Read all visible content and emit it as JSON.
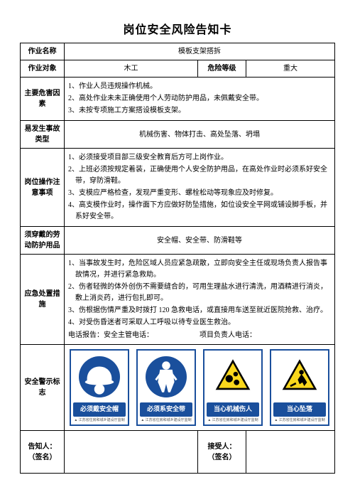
{
  "title": "岗位安全风险告知卡",
  "rows": {
    "job_name": {
      "label": "作业名称",
      "value": "模板支架搭拆"
    },
    "job_target": {
      "label": "作业对象",
      "value": "木工",
      "risk_level_label": "危险等级",
      "risk_level_value": "重大"
    },
    "hazards": {
      "label": "主要危害因素",
      "items": [
        "1、作业人员违规操作机械。",
        "2、高处作业未未正确使用个人劳动防护用品，未佩戴安全带。",
        "3、未按专项施工方案搭设模板支架。"
      ]
    },
    "accident_type": {
      "label": "易发生事故类型",
      "value": "机械伤害、物体打击、高处坠落、坍塌"
    },
    "precautions": {
      "label": "岗位操作注意事项",
      "items": [
        "1、必须接受项目部三级安全教育后方可上岗作业。",
        "2、上班必须按规定着装，正确使用个人安全防护用品，在高处作业时必须系好安全带，穿防滑鞋。",
        "3、支模应严格检查，发现严重变形、螺栓松动等现象应及时修复。",
        "4、高支模作业时，操作面下方应做好防坠措施，如位设安全平网或铺设脚手板，并系好安全带。"
      ]
    },
    "ppe": {
      "label": "须穿戴的劳动防护用品",
      "value": "安全帽、安全带、防滑鞋等"
    },
    "emergency": {
      "label": "应急处置措施",
      "items": [
        "1、当事故发生时，危险区域人员应紧急疏散，立即向安全主任或现场负责人报告事故情况，并进行紧急救助。",
        "2、伤者轻微的体外创伤不需要缝合的，可用生理盐水进行清洗，用酒精进行消炎，敷上消炎药，进行包扎即可。",
        "3、伤根据伤情严重及时拨打 120 急救电话，或直接用车送至就近医院抢救、治疗。",
        "4、对受伤昏迷者可采取人工呼吸以待专业医生救治。"
      ],
      "contact_left": "电话报告：安全主管电话：",
      "contact_right": "项目负责人电话："
    },
    "signs": {
      "label": "安全警示标志",
      "items": [
        {
          "type": "mandatory",
          "text": "必须戴安全帽",
          "icon": "helmet",
          "footer": "▲ 江苏省住房和城乡建设厅监制"
        },
        {
          "type": "mandatory",
          "text": "必须系安全带",
          "icon": "harness",
          "footer": "▲ 江苏省住房和城乡建设厅监制"
        },
        {
          "type": "warning",
          "text": "当心机械伤人",
          "icon": "gears",
          "footer": "▲ 江苏省住房和城乡建设厅监制"
        },
        {
          "type": "warning",
          "text": "当心坠落",
          "icon": "fall",
          "footer": "▲ 江苏省住房和城乡建设厅监制"
        }
      ]
    },
    "signatures": {
      "informer_label": "告知人：\n（签名）",
      "receiver_label": "接受人：\n（签名）"
    }
  },
  "colors": {
    "blue": "#1a4f9c",
    "yellow": "#f9d71c",
    "black": "#000000"
  }
}
